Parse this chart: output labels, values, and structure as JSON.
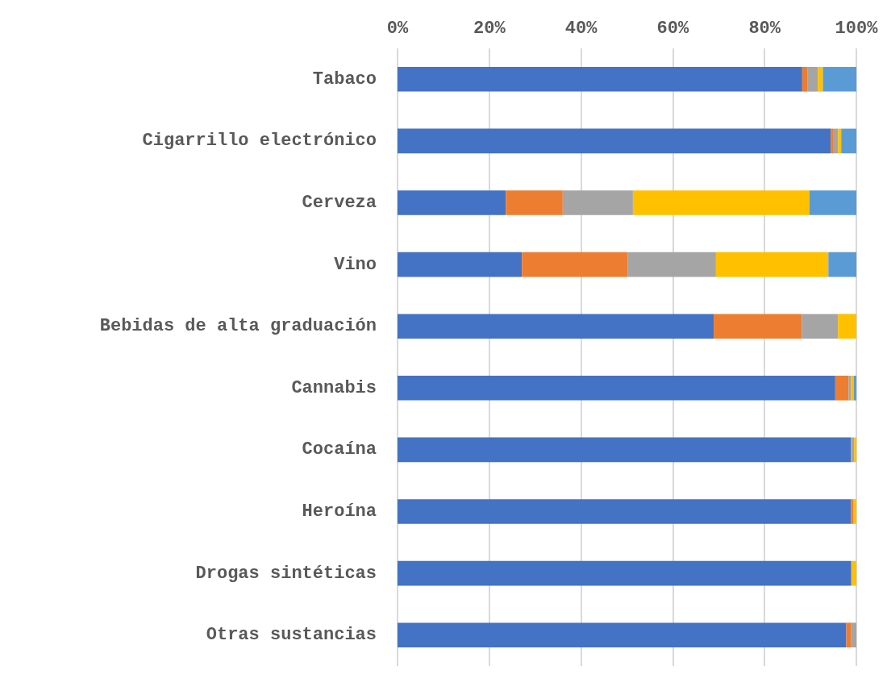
{
  "chart_data": {
    "type": "bar",
    "orientation": "horizontal",
    "stacked": true,
    "categories": [
      "Tabaco",
      "Cigarrillo electrónico",
      "Cerveza",
      "Vino",
      "Bebidas de alta graduación",
      "Cannabis",
      "Cocaína",
      "Heroína",
      "Drogas sintéticas",
      "Otras sustancias"
    ],
    "series": [
      {
        "color": "#4472c4",
        "values": [
          88.2,
          94.4,
          23.6,
          27.1,
          68.9,
          95.4,
          98.8,
          98.8,
          98.9,
          97.8
        ]
      },
      {
        "color": "#ed7d31",
        "values": [
          1.1,
          0.5,
          12.4,
          23.1,
          19.2,
          2.9,
          0,
          0.6,
          0,
          1.1
        ]
      },
      {
        "color": "#a5a5a5",
        "values": [
          2.3,
          1.1,
          15.3,
          19.2,
          7.9,
          0.5,
          0.7,
          0,
          0,
          1.1
        ]
      },
      {
        "color": "#ffc000",
        "values": [
          1.1,
          0.7,
          38.5,
          24.5,
          4.0,
          0.6,
          0.5,
          0.6,
          1.1,
          0
        ]
      },
      {
        "color": "#5b9bd5",
        "values": [
          7.3,
          3.3,
          10.2,
          6.1,
          0,
          0.6,
          0,
          0,
          0,
          0
        ]
      }
    ],
    "xlim": [
      0,
      100
    ],
    "xticks": [
      {
        "value": 0,
        "label": "0%"
      },
      {
        "value": 20,
        "label": "20%"
      },
      {
        "value": 40,
        "label": "40%"
      },
      {
        "value": 60,
        "label": "60%"
      },
      {
        "value": 80,
        "label": "80%"
      },
      {
        "value": 100,
        "label": "100%"
      }
    ],
    "grid": "x"
  }
}
